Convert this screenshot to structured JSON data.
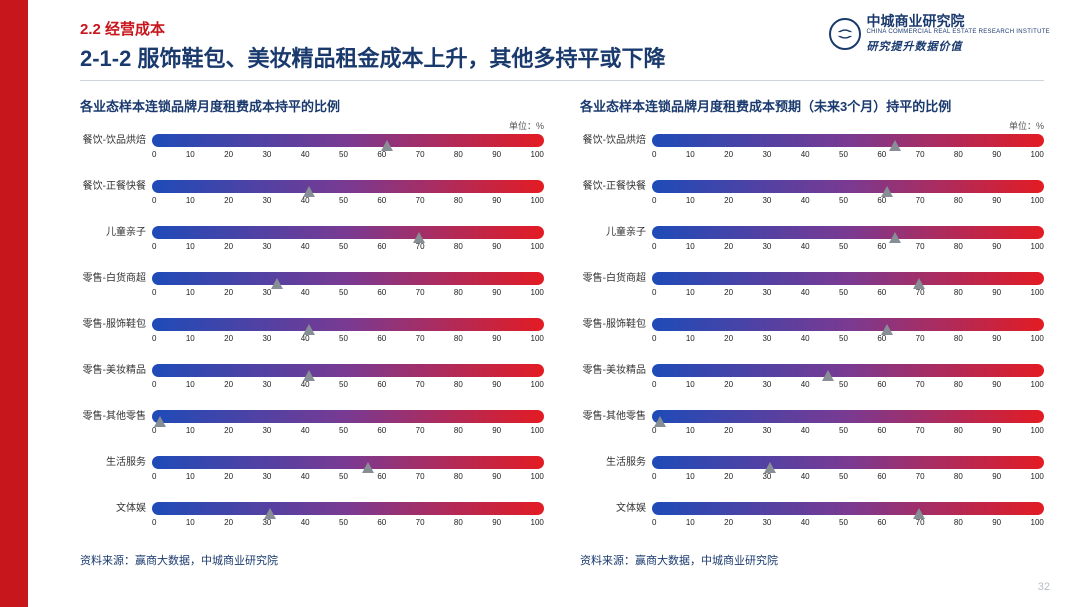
{
  "section_label": "2.2  经营成本",
  "title": "2-1-2  服饰鞋包、美妆精品租金成本上升，其他多持平或下降",
  "logo": {
    "name": "中城商业研究院",
    "sub_en": "CHINA COMMERCIAL REAL ESTATE RESEARCH INSTITUTE",
    "tagline": "研究提升数据价值"
  },
  "unit_label": "单位：%",
  "gradient": {
    "start": "#1e4bb8",
    "mid": "#7a3a92",
    "end": "#e31b23"
  },
  "marker_color": "#888e96",
  "tick_labels": [
    "0",
    "10",
    "20",
    "30",
    "40",
    "50",
    "60",
    "70",
    "80",
    "90",
    "100"
  ],
  "categories": [
    "餐饮-饮品烘焙",
    "餐饮-正餐快餐",
    "儿童亲子",
    "零售-白货商超",
    "零售-服饰鞋包",
    "零售-美妆精品",
    "零售-其他零售",
    "生活服务",
    "文体娱"
  ],
  "left": {
    "title": "各业态样本连锁品牌月度租费成本持平的比例",
    "values": [
      60,
      40,
      68,
      32,
      40,
      40,
      2,
      55,
      30
    ],
    "source": "资料来源：赢商大数据，中城商业研究院"
  },
  "right": {
    "title": "各业态样本连锁品牌月度租费成本预期（未来3个月）持平的比例",
    "values": [
      62,
      60,
      62,
      68,
      60,
      45,
      2,
      30,
      68
    ],
    "source": "资料来源：赢商大数据，中城商业研究院"
  },
  "page_number": "32"
}
